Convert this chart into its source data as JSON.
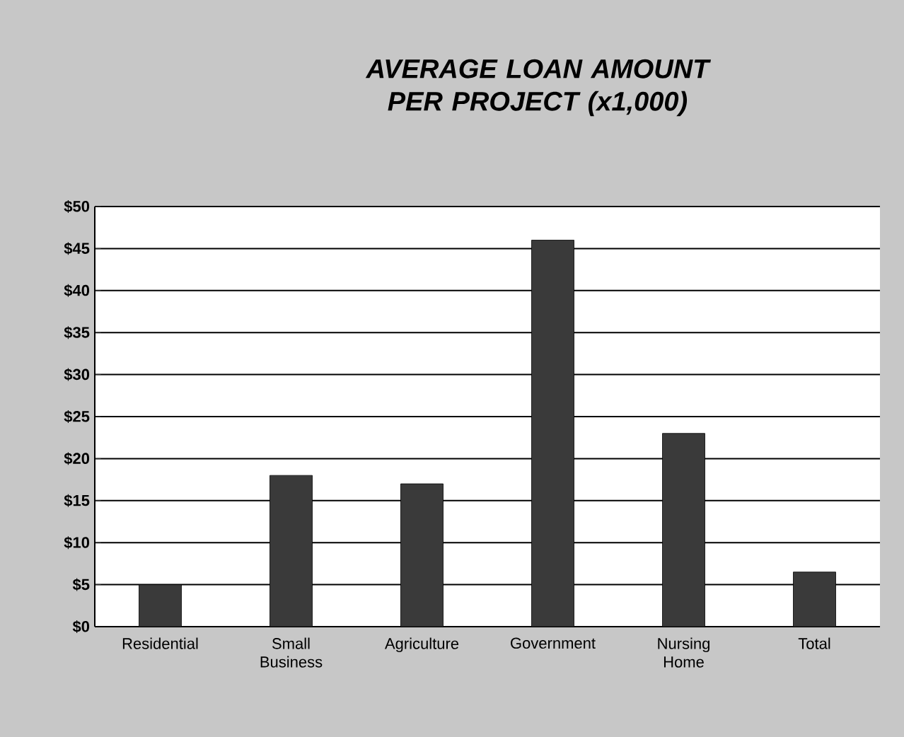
{
  "chart_data": {
    "type": "bar",
    "title": "AVERAGE LOAN AMOUNT PER PROJECT (x1,000)",
    "categories": [
      "Residential",
      "Small Business",
      "Agriculture",
      "Government",
      "Nursing Home",
      "Total"
    ],
    "values": [
      5,
      18,
      17,
      46,
      23,
      6.5
    ],
    "color": "#3a3a3a",
    "ylim": [
      0,
      50
    ],
    "yticks": [
      {
        "value": 0,
        "label": "$0"
      },
      {
        "value": 5,
        "label": "$5"
      },
      {
        "value": 10,
        "label": "$10"
      },
      {
        "value": 15,
        "label": "$15"
      },
      {
        "value": 20,
        "label": "$20"
      },
      {
        "value": 25,
        "label": "$25"
      },
      {
        "value": 30,
        "label": "$30"
      },
      {
        "value": 35,
        "label": "$35"
      },
      {
        "value": 40,
        "label": "$40"
      },
      {
        "value": 45,
        "label": "$45"
      },
      {
        "value": 50,
        "label": "$50"
      }
    ],
    "grid": "y"
  }
}
